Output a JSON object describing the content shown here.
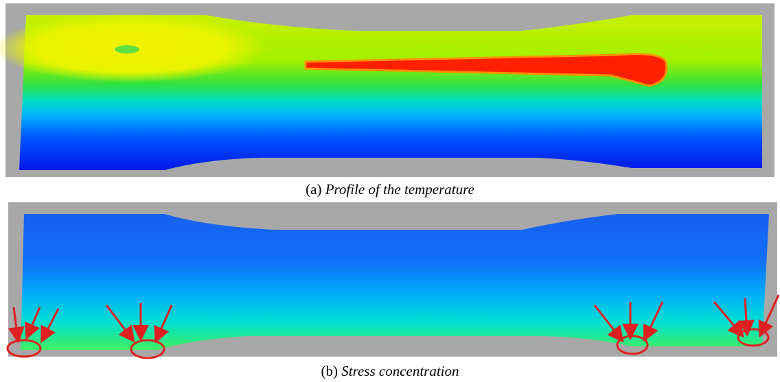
{
  "figures": [
    {
      "label": "(a)",
      "caption": "Profile of the temperature"
    },
    {
      "label": "(b)",
      "caption": "Stress concentration"
    }
  ]
}
